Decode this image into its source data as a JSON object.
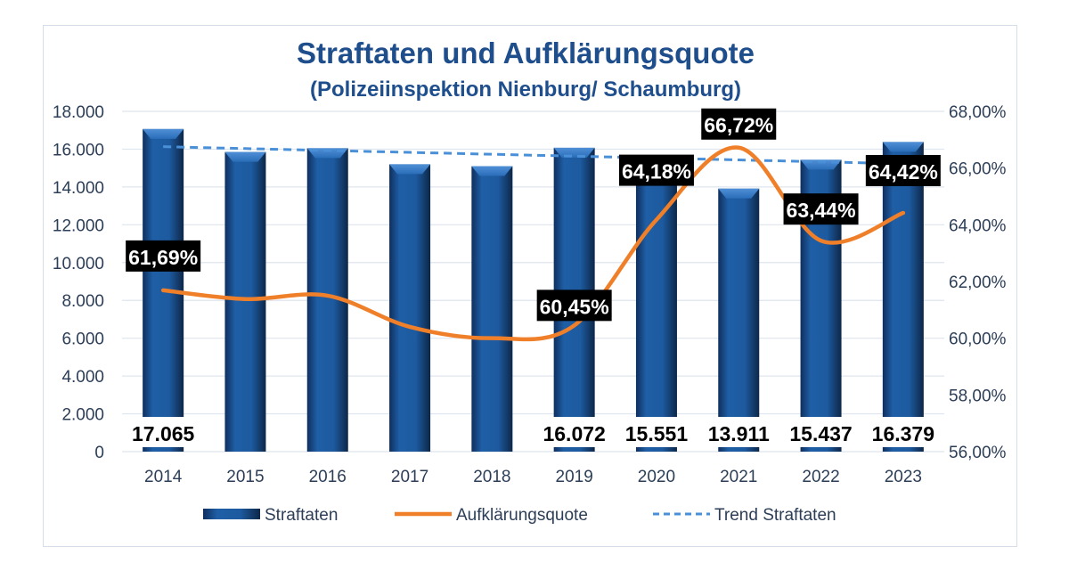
{
  "chart_data": {
    "type": "bar",
    "title": "Straftaten und Aufklärungsquote",
    "subtitle": "(Polizeiinspektion Nienburg/ Schaumburg)",
    "categories": [
      "2014",
      "2015",
      "2016",
      "2017",
      "2018",
      "2019",
      "2020",
      "2021",
      "2022",
      "2023"
    ],
    "series": [
      {
        "name": "Straftaten",
        "type": "bar",
        "axis": "left",
        "values": [
          17065,
          15850,
          16050,
          15200,
          15100,
          16072,
          15551,
          13911,
          15437,
          16379
        ],
        "data_labels": [
          "17.065",
          null,
          null,
          null,
          null,
          "16.072",
          "15.551",
          "13.911",
          "15.437",
          "16.379"
        ],
        "color": "#1f5fa6"
      },
      {
        "name": "Aufklärungsquote",
        "type": "line",
        "smooth": true,
        "axis": "right",
        "values": [
          61.69,
          61.38,
          61.5,
          60.4,
          60.0,
          60.45,
          64.18,
          66.72,
          63.44,
          64.42
        ],
        "data_labels": [
          "61,69%",
          null,
          null,
          null,
          null,
          "60,45%",
          "64,18%",
          "66,72%",
          "63,44%",
          "64,42%"
        ],
        "color": "#f07f2a"
      },
      {
        "name": "Trend Straftaten",
        "type": "line",
        "dashed": true,
        "axis": "left",
        "values": [
          16130,
          16030,
          15930,
          15830,
          15730,
          15630,
          15530,
          15430,
          15330,
          15230
        ],
        "color": "#4a90d9"
      }
    ],
    "y_left": {
      "ylim": [
        0,
        18000
      ],
      "ticks": [
        "0",
        "2.000",
        "4.000",
        "6.000",
        "8.000",
        "10.000",
        "12.000",
        "14.000",
        "16.000",
        "18.000"
      ]
    },
    "y_right": {
      "ylim": [
        56,
        68
      ],
      "ticks": [
        "56,00%",
        "58,00%",
        "60,00%",
        "62,00%",
        "64,00%",
        "66,00%",
        "68,00%"
      ]
    },
    "grid": true,
    "legend": {
      "position": "bottom",
      "entries": [
        "Straftaten",
        "Aufklärungsquote",
        "Trend Straftaten"
      ]
    }
  }
}
